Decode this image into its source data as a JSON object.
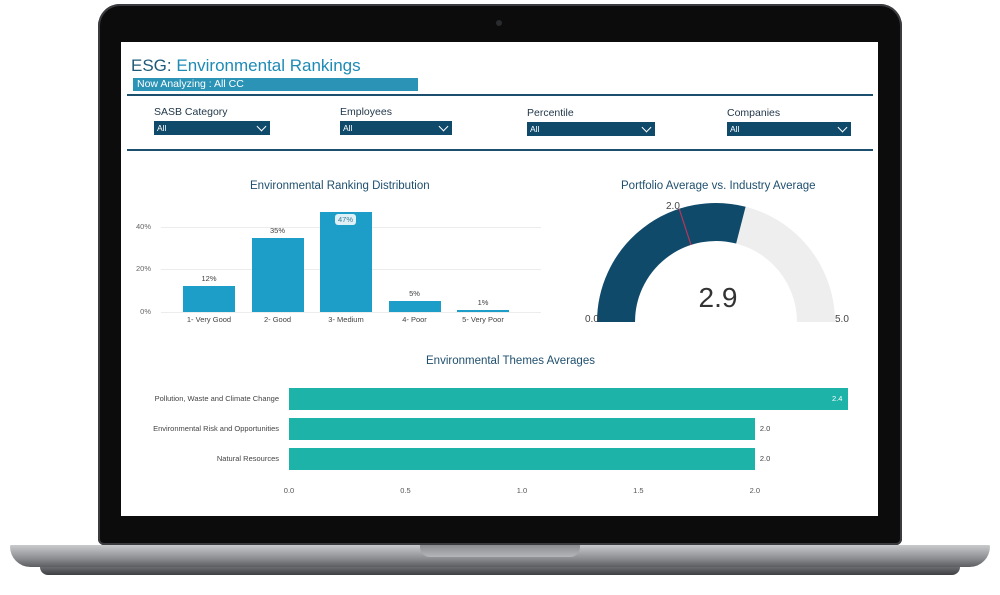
{
  "header": {
    "title_prefix": "ESG:",
    "title_main": "Environmental Rankings",
    "analyzing": "Now Analyzing : All CC"
  },
  "filters": [
    {
      "label": "SASB Category",
      "value": "All"
    },
    {
      "label": "Employees",
      "value": "All"
    },
    {
      "label": "Percentile",
      "value": "All"
    },
    {
      "label": "Companies",
      "value": "All"
    }
  ],
  "distribution": {
    "title": "Environmental Ranking Distribution",
    "yticks": [
      "40%",
      "20%",
      "0%"
    ]
  },
  "gauge": {
    "title": "Portfolio Average vs. Industry Average",
    "value_text": "2.9",
    "min_text": "0.0",
    "max_text": "5.0",
    "target_text": "2.0",
    "value": 2.9,
    "min": 0,
    "max": 5,
    "target": 2.0,
    "fill_color": "#0f4a6b",
    "track_color": "#eeeeee"
  },
  "themes": {
    "title": "Environmental Themes Averages",
    "xticks": [
      "0.0",
      "0.5",
      "1.0",
      "1.5",
      "2.0"
    ]
  },
  "colors": {
    "accent": "#1e8bb5",
    "bar": "#1c9ec9",
    "hbar": "#1db3a8",
    "navy": "#0f4a6b"
  },
  "chart_data": [
    {
      "type": "bar",
      "title": "Environmental Ranking Distribution",
      "categories": [
        "1- Very Good",
        "2- Good",
        "3- Medium",
        "4- Poor",
        "5- Very Poor"
      ],
      "values": [
        12,
        35,
        47,
        5,
        1
      ],
      "value_labels": [
        "12%",
        "35%",
        "47%",
        "5%",
        "1%"
      ],
      "ylim": [
        0,
        47
      ],
      "yticks": [
        "0%",
        "20%",
        "40%"
      ]
    },
    {
      "type": "bar",
      "orientation": "horizontal",
      "title": "Environmental Themes Averages",
      "categories": [
        "Pollution, Waste and Climate Change",
        "Environmental Risk and Opportunities",
        "Natural Resources"
      ],
      "values": [
        2.4,
        2.0,
        2.0
      ],
      "value_labels": [
        "2.4",
        "2.0",
        "2.0"
      ],
      "xlim": [
        0,
        2.4
      ],
      "xticks": [
        "0.0",
        "0.5",
        "1.0",
        "1.5",
        "2.0"
      ]
    }
  ]
}
